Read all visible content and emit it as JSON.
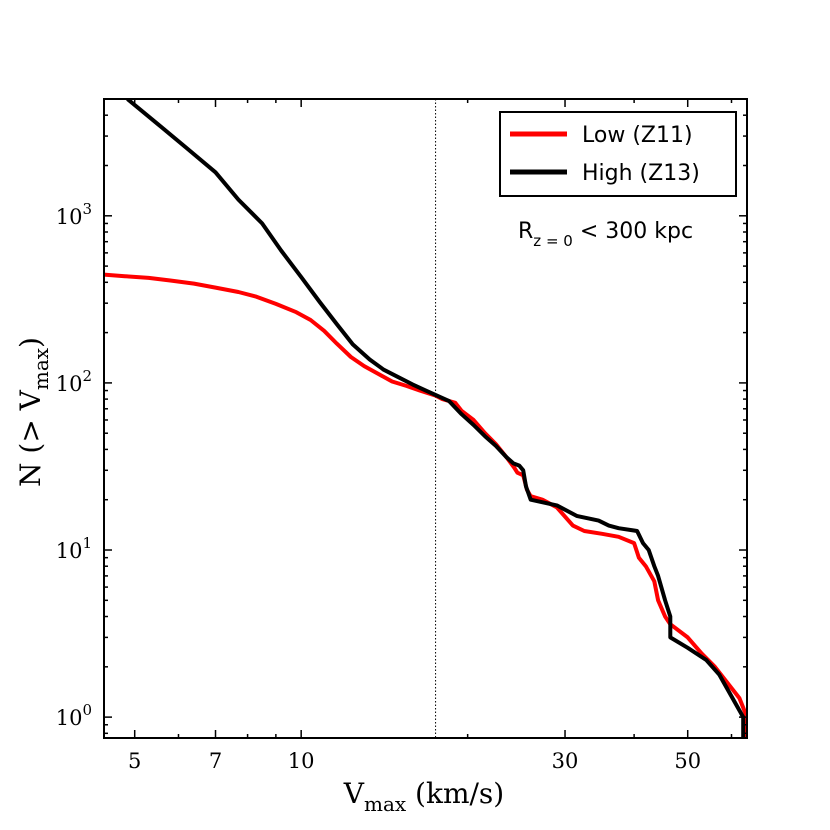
{
  "chart_data": {
    "type": "line",
    "xscale": "log",
    "yscale": "log",
    "xlim": [
      4.4,
      64
    ],
    "ylim": [
      0.75,
      5000
    ],
    "xlabel": {
      "main": "V",
      "sub": "max",
      "rest": " (km/s)"
    },
    "ylabel": {
      "main": "N (> V",
      "sub": "max",
      "rest": ")"
    },
    "xticks": [
      {
        "value": 5,
        "label": "5"
      },
      {
        "value": 7,
        "label": "7"
      },
      {
        "value": 10,
        "label": "10"
      },
      {
        "value": 30,
        "label": "30"
      },
      {
        "value": 50,
        "label": "50"
      }
    ],
    "xticks_unlabeled": [
      6,
      8,
      9,
      20,
      40,
      60
    ],
    "yticks": [
      {
        "value": 1,
        "base": "10",
        "exp": "0"
      },
      {
        "value": 10,
        "base": "10",
        "exp": "1"
      },
      {
        "value": 100,
        "base": "10",
        "exp": "2"
      },
      {
        "value": 1000,
        "base": "10",
        "exp": "3"
      }
    ],
    "vline": {
      "x": 17.5,
      "style": "dotted"
    },
    "annotation": {
      "main": "R",
      "sub": "z = 0",
      "rest": " < 300 kpc"
    },
    "legend_position": "top-right",
    "series": [
      {
        "name": "Low (Z11)",
        "color": "#ff0000",
        "points": [
          [
            4.4,
            445
          ],
          [
            4.8,
            435
          ],
          [
            5.3,
            425
          ],
          [
            5.8,
            410
          ],
          [
            6.4,
            393
          ],
          [
            7.0,
            372
          ],
          [
            7.7,
            350
          ],
          [
            8.3,
            328
          ],
          [
            9.0,
            297
          ],
          [
            9.8,
            265
          ],
          [
            10.4,
            238
          ],
          [
            11.0,
            205
          ],
          [
            11.6,
            172
          ],
          [
            12.3,
            143
          ],
          [
            13.0,
            126
          ],
          [
            13.8,
            113
          ],
          [
            14.6,
            102
          ],
          [
            15.5,
            96
          ],
          [
            16.4,
            90
          ],
          [
            17.5,
            84
          ],
          [
            18.0,
            80
          ],
          [
            19.0,
            76
          ],
          [
            19.5,
            68
          ],
          [
            20.5,
            60
          ],
          [
            21.5,
            50
          ],
          [
            22.5,
            43
          ],
          [
            23.5,
            36
          ],
          [
            24.3,
            31
          ],
          [
            24.6,
            29
          ],
          [
            25.2,
            28
          ],
          [
            25.6,
            23
          ],
          [
            26.0,
            21
          ],
          [
            27.3,
            20
          ],
          [
            29.0,
            18
          ],
          [
            31.0,
            14
          ],
          [
            32.5,
            13
          ],
          [
            35.0,
            12.5
          ],
          [
            37.5,
            12
          ],
          [
            40.0,
            11
          ],
          [
            40.8,
            9
          ],
          [
            42.0,
            8
          ],
          [
            43.5,
            6.5
          ],
          [
            44.2,
            5
          ],
          [
            45.5,
            4
          ],
          [
            46.5,
            3.6
          ],
          [
            50.0,
            3
          ],
          [
            53.0,
            2.4
          ],
          [
            56.0,
            2
          ],
          [
            62.0,
            1.3
          ],
          [
            64.0,
            1.0
          ],
          [
            64.0,
            0.75
          ]
        ]
      },
      {
        "name": "High (Z13)",
        "color": "#000000",
        "points": [
          [
            4.85,
            5000
          ],
          [
            5.5,
            3550
          ],
          [
            6.2,
            2550
          ],
          [
            7.0,
            1820
          ],
          [
            7.7,
            1250
          ],
          [
            8.5,
            900
          ],
          [
            9.2,
            620
          ],
          [
            10.0,
            430
          ],
          [
            10.8,
            305
          ],
          [
            11.6,
            225
          ],
          [
            12.4,
            170
          ],
          [
            13.3,
            138
          ],
          [
            14.1,
            120
          ],
          [
            15.0,
            108
          ],
          [
            15.9,
            98
          ],
          [
            16.8,
            90
          ],
          [
            17.6,
            84
          ],
          [
            18.5,
            78
          ],
          [
            19.5,
            65
          ],
          [
            20.5,
            56
          ],
          [
            21.5,
            48
          ],
          [
            22.5,
            42
          ],
          [
            23.5,
            36
          ],
          [
            24.2,
            33
          ],
          [
            24.8,
            32
          ],
          [
            25.2,
            30
          ],
          [
            25.5,
            24
          ],
          [
            26.0,
            20
          ],
          [
            29.0,
            18.5
          ],
          [
            31.5,
            16
          ],
          [
            34.5,
            15
          ],
          [
            36.0,
            14
          ],
          [
            37.5,
            13.5
          ],
          [
            40.5,
            13
          ],
          [
            41.5,
            11
          ],
          [
            42.5,
            10
          ],
          [
            43.5,
            8
          ],
          [
            44.2,
            7
          ],
          [
            45.5,
            5
          ],
          [
            46.5,
            4
          ],
          [
            46.5,
            3
          ],
          [
            50.0,
            2.6
          ],
          [
            54.0,
            2.2
          ],
          [
            57.0,
            1.8
          ],
          [
            63.0,
            1.0
          ],
          [
            63.0,
            0.75
          ]
        ]
      }
    ]
  }
}
